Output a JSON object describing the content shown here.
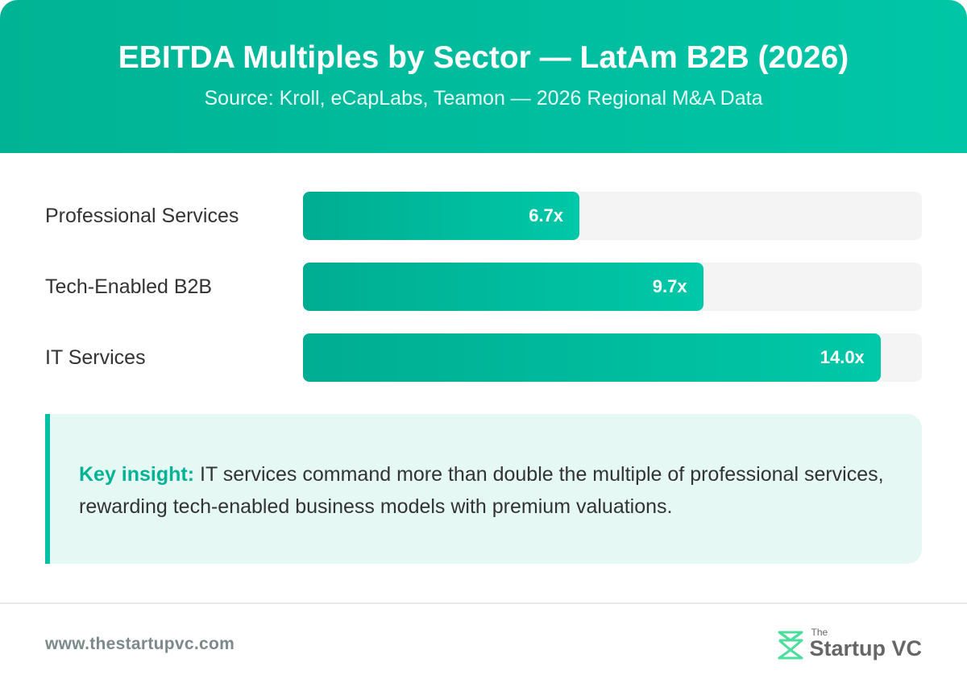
{
  "header": {
    "title": "EBITDA Multiples by Sector — LatAm B2B (2026)",
    "subtitle": "Source: Kroll, eCapLabs, Teamon — 2026 Regional M&A Data"
  },
  "chart_data": {
    "type": "bar",
    "orientation": "horizontal",
    "categories": [
      "Professional Services",
      "Tech-Enabled B2B",
      "IT Services"
    ],
    "values": [
      6.7,
      9.7,
      14.0
    ],
    "data_labels": [
      "6.7x",
      "9.7x",
      "14.0x"
    ],
    "xlim": [
      0,
      15
    ],
    "bar_color": "#00c1a2",
    "track_color": "#f4f4f4"
  },
  "insight": {
    "lead": "Key insight:",
    "text": " IT services command more than double the multiple of professional services, rewarding tech-enabled business models with premium valuations."
  },
  "footer": {
    "url": "www.thestartupvc.com",
    "logo_the": "The",
    "logo_name": "Startup VC"
  }
}
